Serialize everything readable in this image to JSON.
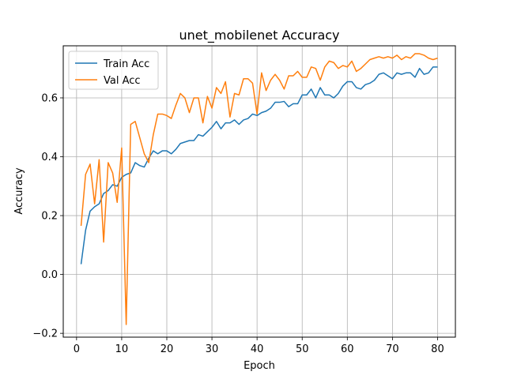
{
  "chart_data": {
    "type": "line",
    "title": "unet_mobilenet Accuracy",
    "xlabel": "Epoch",
    "ylabel": "Accuracy",
    "xlim": [
      -2.95,
      83.95
    ],
    "ylim": [
      -0.213,
      0.777
    ],
    "xticks": [
      0,
      10,
      20,
      30,
      40,
      50,
      60,
      70,
      80
    ],
    "yticks": [
      -0.2,
      0.0,
      0.2,
      0.4,
      0.6
    ],
    "ytick_labels": [
      "−0.2",
      "0.0",
      "0.2",
      "0.4",
      "0.6"
    ],
    "grid": true,
    "legend_position": "upper left",
    "x": [
      1,
      2,
      3,
      4,
      5,
      6,
      7,
      8,
      9,
      10,
      11,
      12,
      13,
      14,
      15,
      16,
      17,
      18,
      19,
      20,
      21,
      22,
      23,
      24,
      25,
      26,
      27,
      28,
      29,
      30,
      31,
      32,
      33,
      34,
      35,
      36,
      37,
      38,
      39,
      40,
      41,
      42,
      43,
      44,
      45,
      46,
      47,
      48,
      49,
      50,
      51,
      52,
      53,
      54,
      55,
      56,
      57,
      58,
      59,
      60,
      61,
      62,
      63,
      64,
      65,
      66,
      67,
      68,
      69,
      70,
      71,
      72,
      73,
      74,
      75,
      76,
      77,
      78,
      79,
      80
    ],
    "series": [
      {
        "name": "Train Acc",
        "color": "#1f77b4",
        "values": [
          0.035,
          0.15,
          0.215,
          0.23,
          0.24,
          0.275,
          0.285,
          0.305,
          0.3,
          0.33,
          0.34,
          0.345,
          0.38,
          0.37,
          0.365,
          0.395,
          0.42,
          0.41,
          0.42,
          0.42,
          0.41,
          0.425,
          0.445,
          0.45,
          0.455,
          0.455,
          0.475,
          0.47,
          0.485,
          0.5,
          0.52,
          0.495,
          0.515,
          0.515,
          0.525,
          0.51,
          0.525,
          0.53,
          0.545,
          0.54,
          0.55,
          0.555,
          0.565,
          0.585,
          0.585,
          0.588,
          0.57,
          0.58,
          0.58,
          0.61,
          0.61,
          0.63,
          0.6,
          0.635,
          0.61,
          0.61,
          0.6,
          0.615,
          0.64,
          0.655,
          0.655,
          0.635,
          0.63,
          0.645,
          0.65,
          0.66,
          0.68,
          0.685,
          0.675,
          0.665,
          0.685,
          0.68,
          0.685,
          0.685,
          0.67,
          0.7,
          0.68,
          0.685,
          0.705,
          0.705
        ]
      },
      {
        "name": "Val Acc",
        "color": "#ff7f0e",
        "values": [
          0.165,
          0.34,
          0.375,
          0.24,
          0.39,
          0.11,
          0.38,
          0.345,
          0.245,
          0.43,
          -0.17,
          0.51,
          0.52,
          0.465,
          0.41,
          0.38,
          0.475,
          0.545,
          0.545,
          0.54,
          0.53,
          0.575,
          0.615,
          0.6,
          0.55,
          0.6,
          0.6,
          0.515,
          0.605,
          0.565,
          0.635,
          0.615,
          0.655,
          0.535,
          0.615,
          0.61,
          0.665,
          0.665,
          0.65,
          0.545,
          0.685,
          0.625,
          0.66,
          0.68,
          0.66,
          0.63,
          0.675,
          0.675,
          0.69,
          0.67,
          0.67,
          0.705,
          0.7,
          0.66,
          0.705,
          0.725,
          0.72,
          0.7,
          0.71,
          0.705,
          0.725,
          0.69,
          0.7,
          0.715,
          0.73,
          0.735,
          0.74,
          0.735,
          0.74,
          0.735,
          0.745,
          0.73,
          0.74,
          0.735,
          0.75,
          0.75,
          0.745,
          0.735,
          0.73,
          0.735
        ]
      }
    ]
  }
}
